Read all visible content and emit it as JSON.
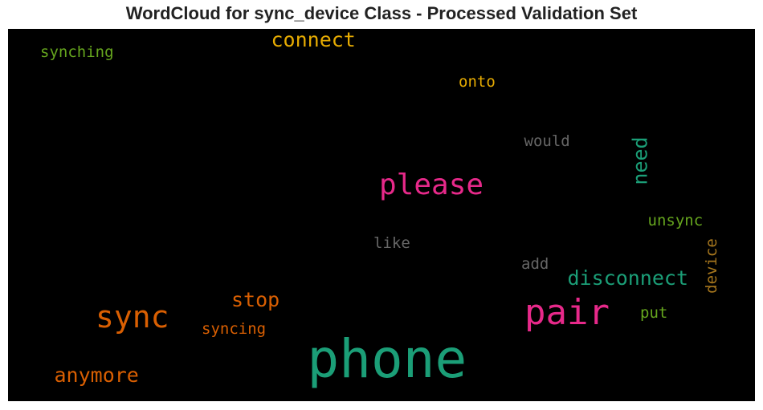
{
  "title": "WordCloud for sync_device Class - Processed Validation Set",
  "chart_data": {
    "type": "wordcloud",
    "title": "WordCloud for sync_device Class - Processed Validation Set",
    "background": "#000000",
    "words": [
      {
        "text": "phone",
        "color": "#1b9e77",
        "orientation": "horizontal"
      },
      {
        "text": "pair",
        "color": "#e7298a",
        "orientation": "horizontal"
      },
      {
        "text": "sync",
        "color": "#d95f02",
        "orientation": "horizontal"
      },
      {
        "text": "please",
        "color": "#e7298a",
        "orientation": "horizontal"
      },
      {
        "text": "connect",
        "color": "#e6ab02",
        "orientation": "horizontal"
      },
      {
        "text": "disconnect",
        "color": "#1b9e77",
        "orientation": "horizontal"
      },
      {
        "text": "need",
        "color": "#1b9e77",
        "orientation": "vertical"
      },
      {
        "text": "anymore",
        "color": "#d95f02",
        "orientation": "horizontal"
      },
      {
        "text": "stop",
        "color": "#d95f02",
        "orientation": "horizontal"
      },
      {
        "text": "synching",
        "color": "#66a61e",
        "orientation": "horizontal"
      },
      {
        "text": "syncing",
        "color": "#d95f02",
        "orientation": "horizontal"
      },
      {
        "text": "onto",
        "color": "#e6ab02",
        "orientation": "horizontal"
      },
      {
        "text": "would",
        "color": "#666666",
        "orientation": "horizontal"
      },
      {
        "text": "unsync",
        "color": "#66a61e",
        "orientation": "horizontal"
      },
      {
        "text": "device",
        "color": "#a6761d",
        "orientation": "vertical"
      },
      {
        "text": "like",
        "color": "#666666",
        "orientation": "horizontal"
      },
      {
        "text": "add",
        "color": "#666666",
        "orientation": "horizontal"
      },
      {
        "text": "put",
        "color": "#66a61e",
        "orientation": "horizontal"
      }
    ]
  }
}
